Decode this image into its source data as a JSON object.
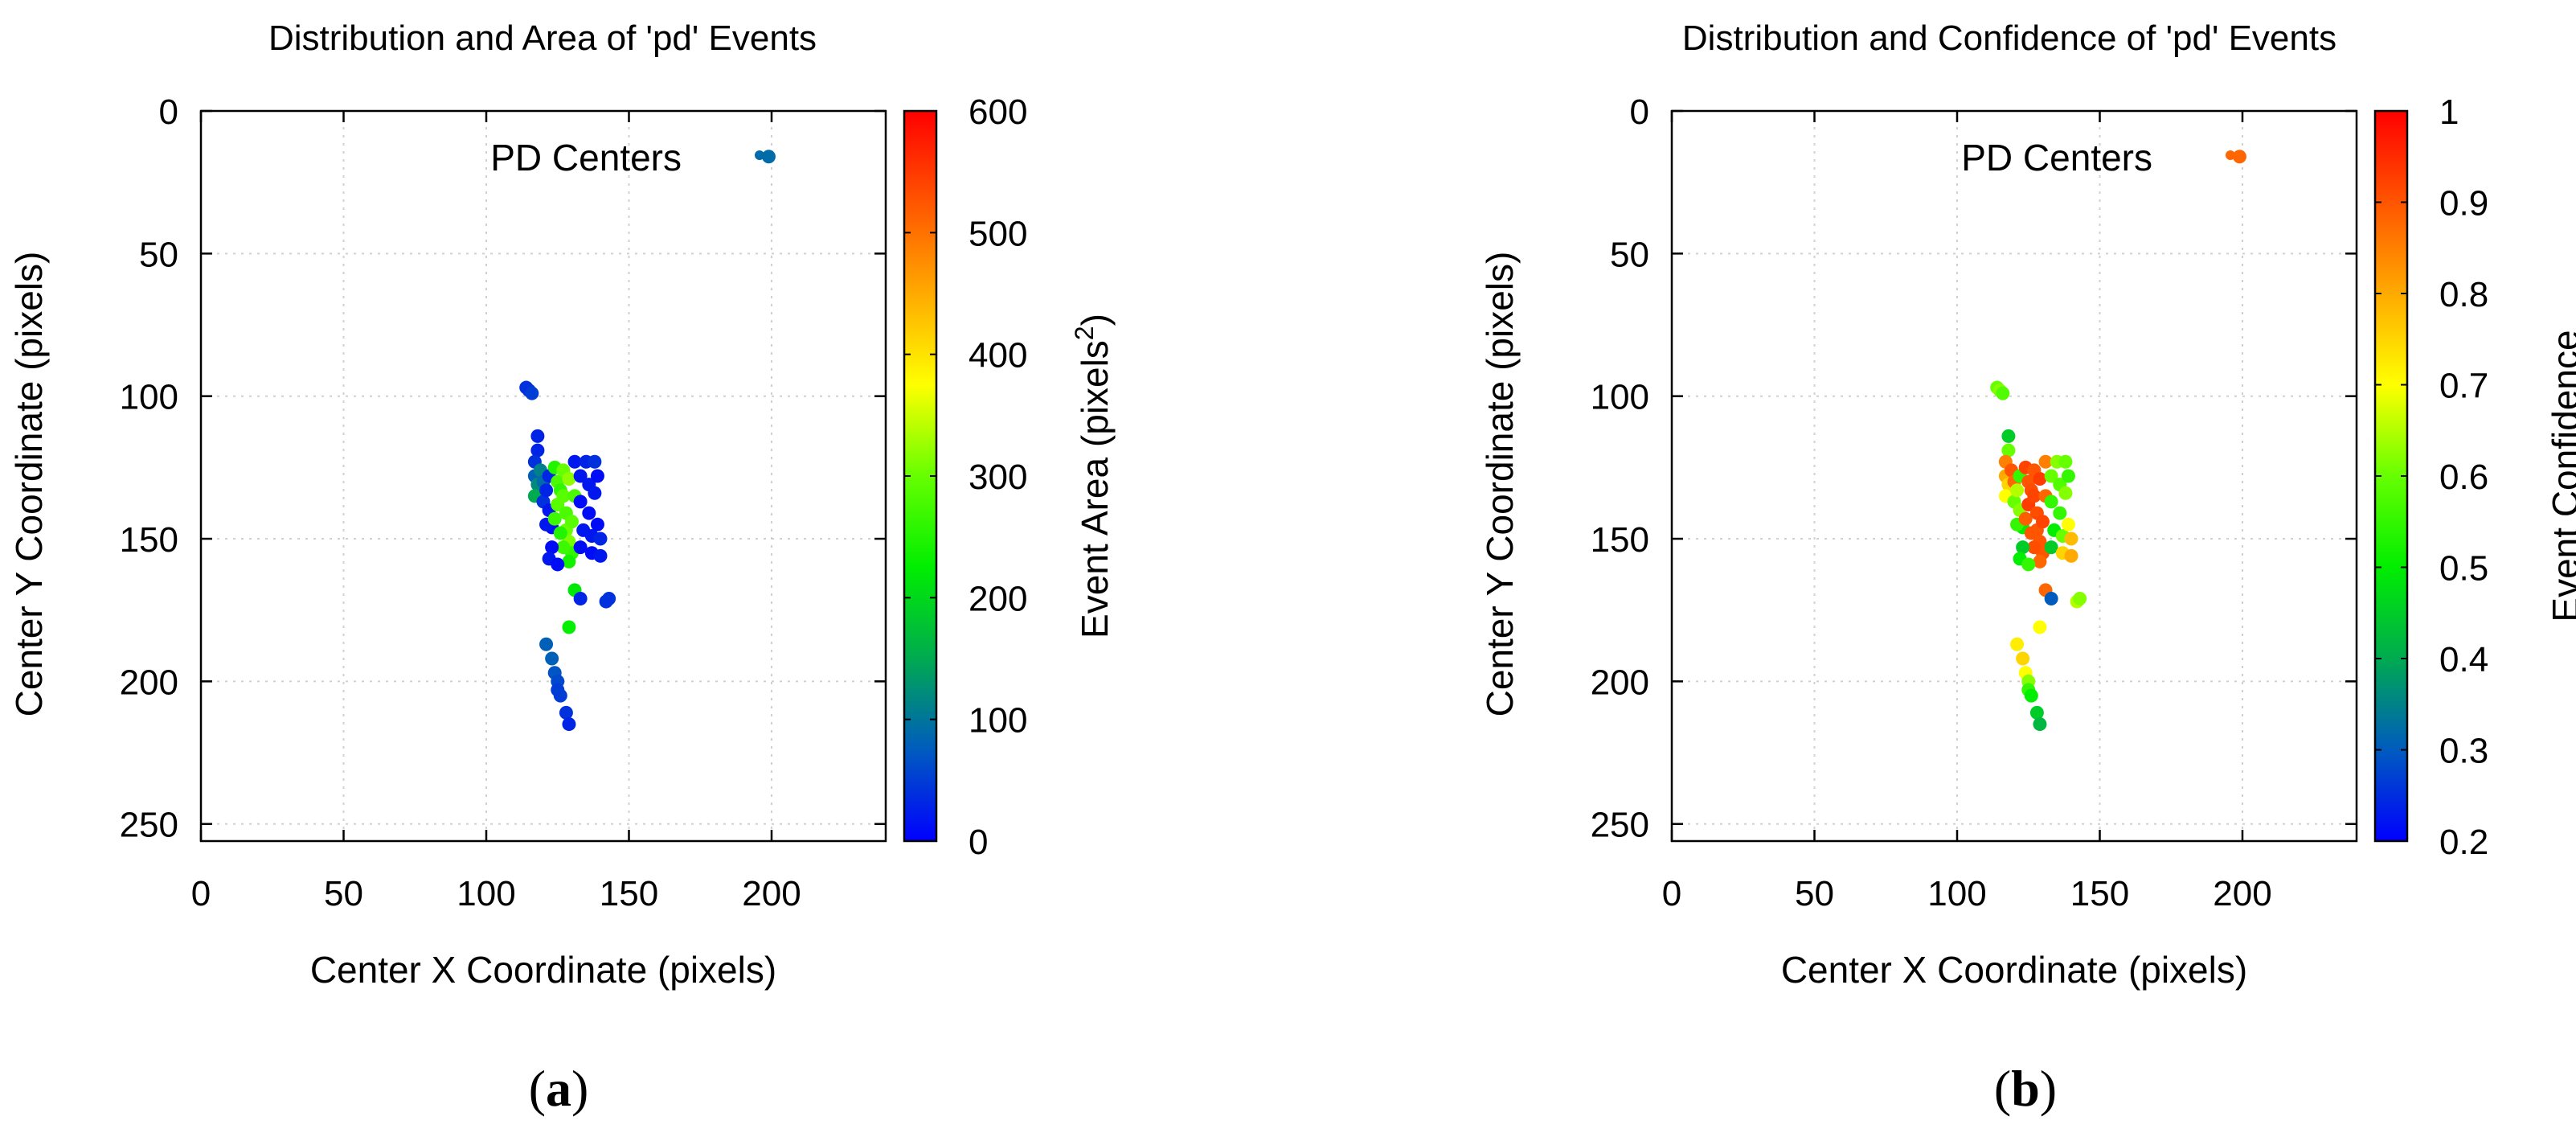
{
  "chart_data": [
    {
      "type": "scatter",
      "panel_label": "a",
      "title": "Distribution and Area of 'pd' Events",
      "xlabel": "Center X Coordinate (pixels)",
      "ylabel": "Center Y Coordinate (pixels)",
      "xlim": [
        0,
        240
      ],
      "ylim": [
        256,
        0
      ],
      "x_reversed": false,
      "y_reversed": true,
      "xticks": [
        0,
        50,
        100,
        150,
        200
      ],
      "yticks": [
        0,
        50,
        100,
        150,
        200,
        250
      ],
      "grid": true,
      "legend": {
        "label": "PD Centers",
        "position": "top-right"
      },
      "colorbar": {
        "label": "Event Area (pixels",
        "label_superscript": "2",
        "label_suffix": ")",
        "range": [
          0,
          600
        ],
        "ticks": [
          0,
          100,
          200,
          300,
          400,
          500,
          600
        ],
        "colormap": [
          "#0000ff",
          "#005bbf",
          "#00aa50",
          "#00ee00",
          "#66ff00",
          "#ffff00",
          "#ffaa00",
          "#ff5500",
          "#ff0000"
        ]
      },
      "color_metric": "area",
      "series": [
        {
          "points": [
            {
              "x": 199,
              "y": 16,
              "c": 90
            },
            {
              "x": 114,
              "y": 97,
              "c": 40
            },
            {
              "x": 115,
              "y": 98,
              "c": 40
            },
            {
              "x": 116,
              "y": 99,
              "c": 50
            },
            {
              "x": 118,
              "y": 114,
              "c": 30
            },
            {
              "x": 118,
              "y": 119,
              "c": 30
            },
            {
              "x": 117,
              "y": 123,
              "c": 40
            },
            {
              "x": 117,
              "y": 128,
              "c": 80
            },
            {
              "x": 118,
              "y": 131,
              "c": 120
            },
            {
              "x": 117,
              "y": 135,
              "c": 150
            },
            {
              "x": 119,
              "y": 126,
              "c": 110
            },
            {
              "x": 120,
              "y": 130,
              "c": 90
            },
            {
              "x": 120,
              "y": 137,
              "c": 40
            },
            {
              "x": 121,
              "y": 133,
              "c": 30
            },
            {
              "x": 122,
              "y": 128,
              "c": 30
            },
            {
              "x": 122,
              "y": 140,
              "c": 20
            },
            {
              "x": 123,
              "y": 146,
              "c": 10
            },
            {
              "x": 121,
              "y": 145,
              "c": 20
            },
            {
              "x": 124,
              "y": 125,
              "c": 250
            },
            {
              "x": 125,
              "y": 130,
              "c": 280
            },
            {
              "x": 125,
              "y": 138,
              "c": 290
            },
            {
              "x": 124,
              "y": 143,
              "c": 270
            },
            {
              "x": 126,
              "y": 133,
              "c": 260
            },
            {
              "x": 127,
              "y": 126,
              "c": 300
            },
            {
              "x": 127,
              "y": 135,
              "c": 290
            },
            {
              "x": 128,
              "y": 141,
              "c": 280
            },
            {
              "x": 128,
              "y": 147,
              "c": 300
            },
            {
              "x": 129,
              "y": 129,
              "c": 320
            },
            {
              "x": 129,
              "y": 151,
              "c": 310
            },
            {
              "x": 130,
              "y": 144,
              "c": 290
            },
            {
              "x": 130,
              "y": 155,
              "c": 260
            },
            {
              "x": 129,
              "y": 158,
              "c": 240
            },
            {
              "x": 127,
              "y": 153,
              "c": 270
            },
            {
              "x": 126,
              "y": 148,
              "c": 250
            },
            {
              "x": 131,
              "y": 135,
              "c": 280
            },
            {
              "x": 131,
              "y": 123,
              "c": 20
            },
            {
              "x": 133,
              "y": 128,
              "c": 20
            },
            {
              "x": 133,
              "y": 137,
              "c": 10
            },
            {
              "x": 134,
              "y": 147,
              "c": 20
            },
            {
              "x": 133,
              "y": 153,
              "c": 10
            },
            {
              "x": 135,
              "y": 123,
              "c": 30
            },
            {
              "x": 136,
              "y": 131,
              "c": 20
            },
            {
              "x": 136,
              "y": 141,
              "c": 10
            },
            {
              "x": 137,
              "y": 149,
              "c": 20
            },
            {
              "x": 137,
              "y": 155,
              "c": 10
            },
            {
              "x": 138,
              "y": 123,
              "c": 40
            },
            {
              "x": 138,
              "y": 134,
              "c": 20
            },
            {
              "x": 139,
              "y": 145,
              "c": 10
            },
            {
              "x": 140,
              "y": 150,
              "c": 30
            },
            {
              "x": 140,
              "y": 156,
              "c": 20
            },
            {
              "x": 139,
              "y": 128,
              "c": 10
            },
            {
              "x": 123,
              "y": 153,
              "c": 10
            },
            {
              "x": 122,
              "y": 157,
              "c": 20
            },
            {
              "x": 125,
              "y": 159,
              "c": 10
            },
            {
              "x": 131,
              "y": 168,
              "c": 220
            },
            {
              "x": 133,
              "y": 171,
              "c": 30
            },
            {
              "x": 142,
              "y": 172,
              "c": 40
            },
            {
              "x": 143,
              "y": 171,
              "c": 40
            },
            {
              "x": 129,
              "y": 181,
              "c": 230
            },
            {
              "x": 121,
              "y": 187,
              "c": 80
            },
            {
              "x": 123,
              "y": 192,
              "c": 80
            },
            {
              "x": 124,
              "y": 197,
              "c": 70
            },
            {
              "x": 125,
              "y": 200,
              "c": 60
            },
            {
              "x": 125,
              "y": 203,
              "c": 50
            },
            {
              "x": 126,
              "y": 205,
              "c": 50
            },
            {
              "x": 128,
              "y": 211,
              "c": 40
            },
            {
              "x": 129,
              "y": 215,
              "c": 30
            }
          ]
        }
      ]
    },
    {
      "type": "scatter",
      "panel_label": "b",
      "title": "Distribution and Confidence of 'pd' Events",
      "xlabel": "Center X Coordinate (pixels)",
      "ylabel": "Center Y Coordinate (pixels)",
      "xlim": [
        0,
        240
      ],
      "ylim": [
        256,
        0
      ],
      "x_reversed": false,
      "y_reversed": true,
      "xticks": [
        0,
        50,
        100,
        150,
        200
      ],
      "yticks": [
        0,
        50,
        100,
        150,
        200,
        250
      ],
      "grid": true,
      "legend": {
        "label": "PD Centers",
        "position": "top-right"
      },
      "colorbar": {
        "label": "Event Confidence",
        "label_superscript": "",
        "label_suffix": "",
        "range": [
          0.2,
          1
        ],
        "ticks": [
          0.2,
          0.3,
          0.4,
          0.5,
          0.6,
          0.7,
          0.8,
          0.9,
          1
        ],
        "colormap": [
          "#0000ff",
          "#005bbf",
          "#00aa50",
          "#00ee00",
          "#66ff00",
          "#ffff00",
          "#ffaa00",
          "#ff5500",
          "#ff0000"
        ]
      },
      "color_metric": "confidence",
      "series": [
        {
          "points": [
            {
              "x": 199,
              "y": 16,
              "c": 0.88
            },
            {
              "x": 114,
              "y": 97,
              "c": 0.6
            },
            {
              "x": 115,
              "y": 98,
              "c": 0.62
            },
            {
              "x": 116,
              "y": 99,
              "c": 0.58
            },
            {
              "x": 118,
              "y": 114,
              "c": 0.45
            },
            {
              "x": 118,
              "y": 119,
              "c": 0.6
            },
            {
              "x": 117,
              "y": 123,
              "c": 0.85
            },
            {
              "x": 117,
              "y": 128,
              "c": 0.8
            },
            {
              "x": 118,
              "y": 131,
              "c": 0.75
            },
            {
              "x": 117,
              "y": 135,
              "c": 0.7
            },
            {
              "x": 119,
              "y": 126,
              "c": 0.9
            },
            {
              "x": 120,
              "y": 130,
              "c": 0.88
            },
            {
              "x": 120,
              "y": 137,
              "c": 0.6
            },
            {
              "x": 121,
              "y": 133,
              "c": 0.65
            },
            {
              "x": 122,
              "y": 128,
              "c": 0.55
            },
            {
              "x": 122,
              "y": 140,
              "c": 0.62
            },
            {
              "x": 123,
              "y": 146,
              "c": 0.5
            },
            {
              "x": 121,
              "y": 145,
              "c": 0.55
            },
            {
              "x": 124,
              "y": 125,
              "c": 0.92
            },
            {
              "x": 125,
              "y": 130,
              "c": 0.9
            },
            {
              "x": 125,
              "y": 138,
              "c": 0.93
            },
            {
              "x": 124,
              "y": 143,
              "c": 0.89
            },
            {
              "x": 126,
              "y": 133,
              "c": 0.91
            },
            {
              "x": 127,
              "y": 126,
              "c": 0.9
            },
            {
              "x": 127,
              "y": 135,
              "c": 0.92
            },
            {
              "x": 128,
              "y": 141,
              "c": 0.91
            },
            {
              "x": 128,
              "y": 147,
              "c": 0.9
            },
            {
              "x": 129,
              "y": 129,
              "c": 0.93
            },
            {
              "x": 129,
              "y": 151,
              "c": 0.9
            },
            {
              "x": 130,
              "y": 144,
              "c": 0.92
            },
            {
              "x": 130,
              "y": 155,
              "c": 0.9
            },
            {
              "x": 129,
              "y": 158,
              "c": 0.88
            },
            {
              "x": 127,
              "y": 153,
              "c": 0.91
            },
            {
              "x": 126,
              "y": 148,
              "c": 0.9
            },
            {
              "x": 131,
              "y": 135,
              "c": 0.88
            },
            {
              "x": 131,
              "y": 123,
              "c": 0.85
            },
            {
              "x": 133,
              "y": 128,
              "c": 0.6
            },
            {
              "x": 133,
              "y": 137,
              "c": 0.55
            },
            {
              "x": 134,
              "y": 147,
              "c": 0.5
            },
            {
              "x": 133,
              "y": 153,
              "c": 0.45
            },
            {
              "x": 135,
              "y": 123,
              "c": 0.62
            },
            {
              "x": 136,
              "y": 131,
              "c": 0.58
            },
            {
              "x": 136,
              "y": 141,
              "c": 0.55
            },
            {
              "x": 137,
              "y": 149,
              "c": 0.6
            },
            {
              "x": 137,
              "y": 155,
              "c": 0.75
            },
            {
              "x": 138,
              "y": 123,
              "c": 0.6
            },
            {
              "x": 138,
              "y": 134,
              "c": 0.62
            },
            {
              "x": 139,
              "y": 145,
              "c": 0.7
            },
            {
              "x": 140,
              "y": 150,
              "c": 0.78
            },
            {
              "x": 140,
              "y": 156,
              "c": 0.8
            },
            {
              "x": 139,
              "y": 128,
              "c": 0.55
            },
            {
              "x": 123,
              "y": 153,
              "c": 0.45
            },
            {
              "x": 122,
              "y": 157,
              "c": 0.5
            },
            {
              "x": 125,
              "y": 159,
              "c": 0.55
            },
            {
              "x": 131,
              "y": 168,
              "c": 0.88
            },
            {
              "x": 133,
              "y": 171,
              "c": 0.3
            },
            {
              "x": 142,
              "y": 172,
              "c": 0.65
            },
            {
              "x": 143,
              "y": 171,
              "c": 0.62
            },
            {
              "x": 129,
              "y": 181,
              "c": 0.7
            },
            {
              "x": 121,
              "y": 187,
              "c": 0.72
            },
            {
              "x": 123,
              "y": 192,
              "c": 0.75
            },
            {
              "x": 124,
              "y": 197,
              "c": 0.7
            },
            {
              "x": 125,
              "y": 200,
              "c": 0.62
            },
            {
              "x": 125,
              "y": 203,
              "c": 0.55
            },
            {
              "x": 126,
              "y": 205,
              "c": 0.5
            },
            {
              "x": 128,
              "y": 211,
              "c": 0.45
            },
            {
              "x": 129,
              "y": 215,
              "c": 0.42
            }
          ]
        }
      ]
    }
  ]
}
